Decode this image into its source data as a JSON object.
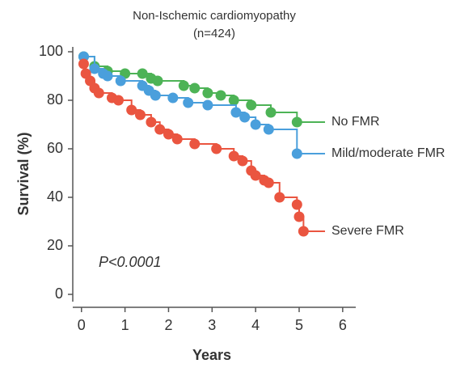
{
  "chart_data": {
    "type": "step",
    "title": "Non-Ischemic cardiomyopathy",
    "subtitle": "(n=424)",
    "xlabel": "Years",
    "ylabel": "Survival (%)",
    "annotation": "P<0.0001",
    "xlim": [
      -0.2,
      6.3
    ],
    "xticks": [
      0,
      1,
      2,
      3,
      4,
      5,
      6
    ],
    "ylim": [
      -3,
      102
    ],
    "yticks": [
      0,
      20,
      40,
      60,
      80,
      100
    ],
    "series": [
      {
        "name": "No FMR",
        "color": "#4db356",
        "x": [
          0.05,
          0.3,
          0.6,
          1,
          1.4,
          1.6,
          1.75,
          2.35,
          2.6,
          2.9,
          3.2,
          3.5,
          3.9,
          4.35,
          4.95
        ],
        "values": [
          98,
          94,
          92,
          91,
          91,
          89,
          88,
          86,
          85,
          83,
          82,
          80,
          78,
          75,
          71
        ]
      },
      {
        "name": "Mild/moderate FMR",
        "color": "#4a9fdc",
        "x": [
          0.05,
          0.3,
          0.5,
          0.6,
          0.9,
          1.4,
          1.55,
          1.7,
          2.1,
          2.45,
          2.9,
          3.55,
          3.75,
          4.0,
          4.3,
          4.95
        ],
        "values": [
          98,
          93,
          91,
          90,
          88,
          86,
          84,
          82,
          81,
          79,
          78,
          75,
          73,
          70,
          68,
          58
        ]
      },
      {
        "name": "Severe FMR",
        "color": "#ea5540",
        "x": [
          0.05,
          0.1,
          0.2,
          0.3,
          0.4,
          0.7,
          0.85,
          1.15,
          1.35,
          1.6,
          1.8,
          2.0,
          2.2,
          2.6,
          3.1,
          3.5,
          3.7,
          3.9,
          4.0,
          4.2,
          4.3,
          4.55,
          4.95,
          5.0,
          5.1
        ],
        "values": [
          95,
          91,
          88,
          85,
          83,
          81,
          80,
          76,
          74,
          71,
          68,
          66,
          64,
          62,
          60,
          57,
          55,
          51,
          49,
          47,
          46,
          40,
          37,
          32,
          26
        ]
      }
    ]
  }
}
